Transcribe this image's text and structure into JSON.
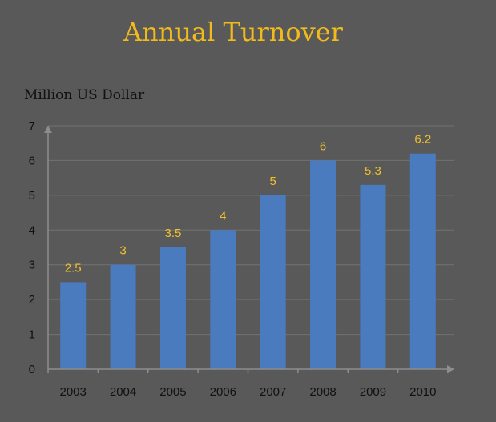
{
  "chart_data": {
    "type": "bar",
    "title": "Annual Turnover",
    "ylabel": "Million US Dollar",
    "xlabel": "",
    "categories": [
      "2003",
      "2004",
      "2005",
      "2006",
      "2007",
      "2008",
      "2009",
      "2010"
    ],
    "values": [
      2.5,
      3,
      3.5,
      4,
      5,
      6,
      5.3,
      6.2
    ],
    "data_labels": [
      "2.5",
      "3",
      "3.5",
      "4",
      "5",
      "6",
      "5.3",
      "6.2"
    ],
    "ylim": [
      0,
      7
    ],
    "yticks": [
      0,
      1,
      2,
      3,
      4,
      5,
      6,
      7
    ],
    "grid": true,
    "legend": "none",
    "colors": {
      "background": "#595959",
      "bar": "#4a7bbf",
      "title": "#f2bb1c",
      "data_label": "#f2c12a",
      "grid": "#727272",
      "axis": "#8d8d8d",
      "text": "#111111"
    }
  }
}
